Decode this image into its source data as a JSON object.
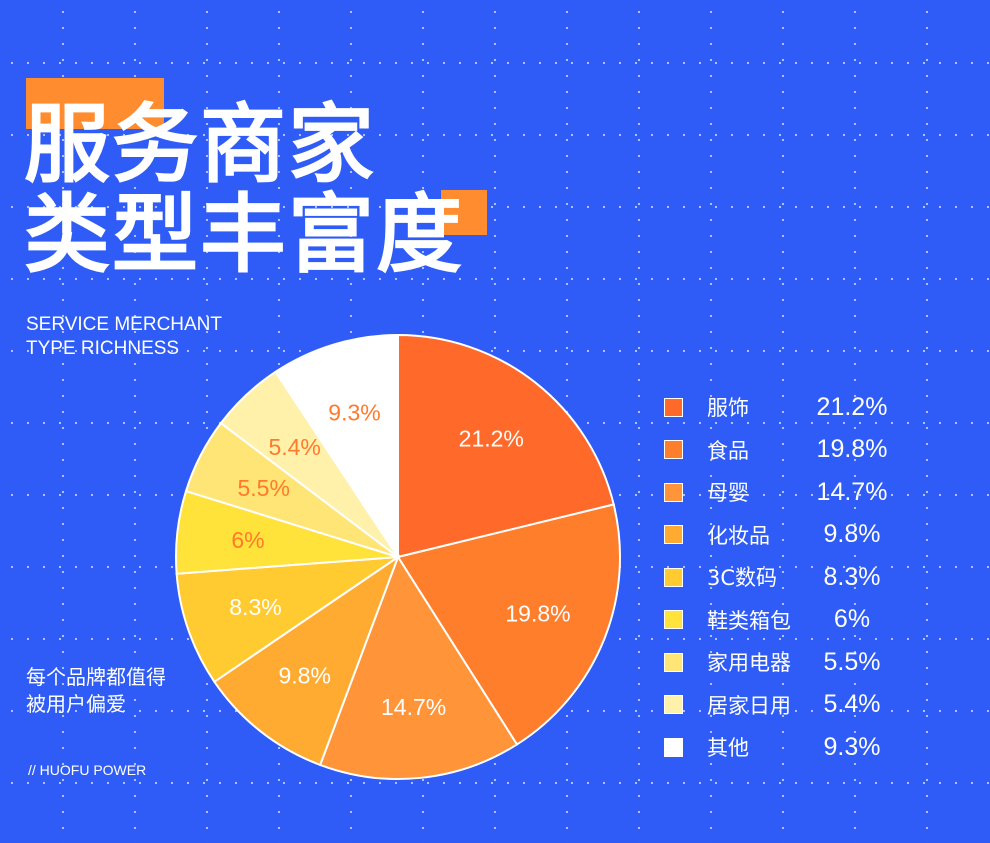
{
  "title_line1": "服务商家",
  "title_line2": "类型丰富度",
  "subtitle_line1": "SERVICE MERCHANT",
  "subtitle_line2": "TYPE RICHNESS",
  "slogan_line1": "每个品牌都值得",
  "slogan_line2": "被用户偏爱",
  "brand": "// HUOFU POWER",
  "colors": {
    "background": "#2f5cf6",
    "accent": "#ff8c2e"
  },
  "chart_data": {
    "type": "pie",
    "categories": [
      "服饰",
      "食品",
      "母婴",
      "化妆品",
      "3C数码",
      "鞋类箱包",
      "家用电器",
      "居家日用",
      "其他"
    ],
    "values": [
      21.2,
      19.8,
      14.7,
      9.8,
      8.3,
      6,
      5.5,
      5.4,
      9.3
    ],
    "labels": [
      "21.2%",
      "19.8%",
      "14.7%",
      "9.8%",
      "8.3%",
      "6%",
      "5.5%",
      "5.4%",
      "9.3%"
    ],
    "colors": [
      "#ff6a2b",
      "#ff7e2c",
      "#ff9439",
      "#ffab32",
      "#ffcb30",
      "#ffe23a",
      "#ffe575",
      "#fff0aa",
      "#ffffff"
    ],
    "label_colors": [
      "#ffffff",
      "#ffffff",
      "#ffffff",
      "#ffffff",
      "#ffffff",
      "#ff7a2c",
      "#ff7a2c",
      "#ff7a2c",
      "#ff7a2c"
    ],
    "start": "top",
    "direction": "clockwise",
    "legend": "right"
  }
}
